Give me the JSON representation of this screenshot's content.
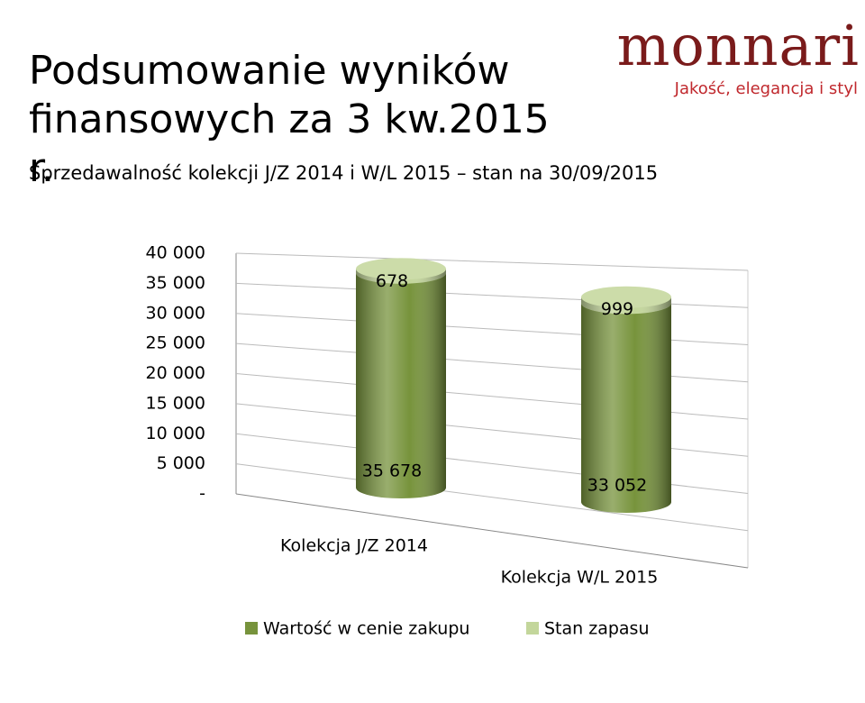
{
  "logo": {
    "name": "monnari",
    "tagline": "Jakość, elegancja i styl"
  },
  "chart_data": {
    "type": "cylinder-stacked",
    "title": "Podsumowanie wyników finansowych za 3 kw.2015 r.",
    "subtitle": "Sprzedawalność kolekcji J/Z  2014 i W/L 2015 – stan na 30/09/2015",
    "categories": [
      "Kolekcja J/Z 2014",
      "Kolekcja W/L 2015"
    ],
    "series": [
      {
        "name": "Wartość w cenie zakupu",
        "color": "#77933c",
        "values": [
          35678,
          33052
        ],
        "value_labels": [
          "35 678",
          "33 052"
        ]
      },
      {
        "name": "Stan zapasu",
        "color": "#c3d69b",
        "values": [
          678,
          999
        ]
      }
    ],
    "ylim": [
      0,
      40000
    ],
    "yticks": [
      {
        "value": 0,
        "label": "-"
      },
      {
        "value": 5000,
        "label": "5 000"
      },
      {
        "value": 10000,
        "label": "10 000"
      },
      {
        "value": 15000,
        "label": "15 000"
      },
      {
        "value": 20000,
        "label": "20 000"
      },
      {
        "value": 25000,
        "label": "25 000"
      },
      {
        "value": 30000,
        "label": "30 000"
      },
      {
        "value": 35000,
        "label": "35 000"
      },
      {
        "value": 40000,
        "label": "40 000"
      }
    ],
    "grid": true,
    "legend": "bottom"
  }
}
